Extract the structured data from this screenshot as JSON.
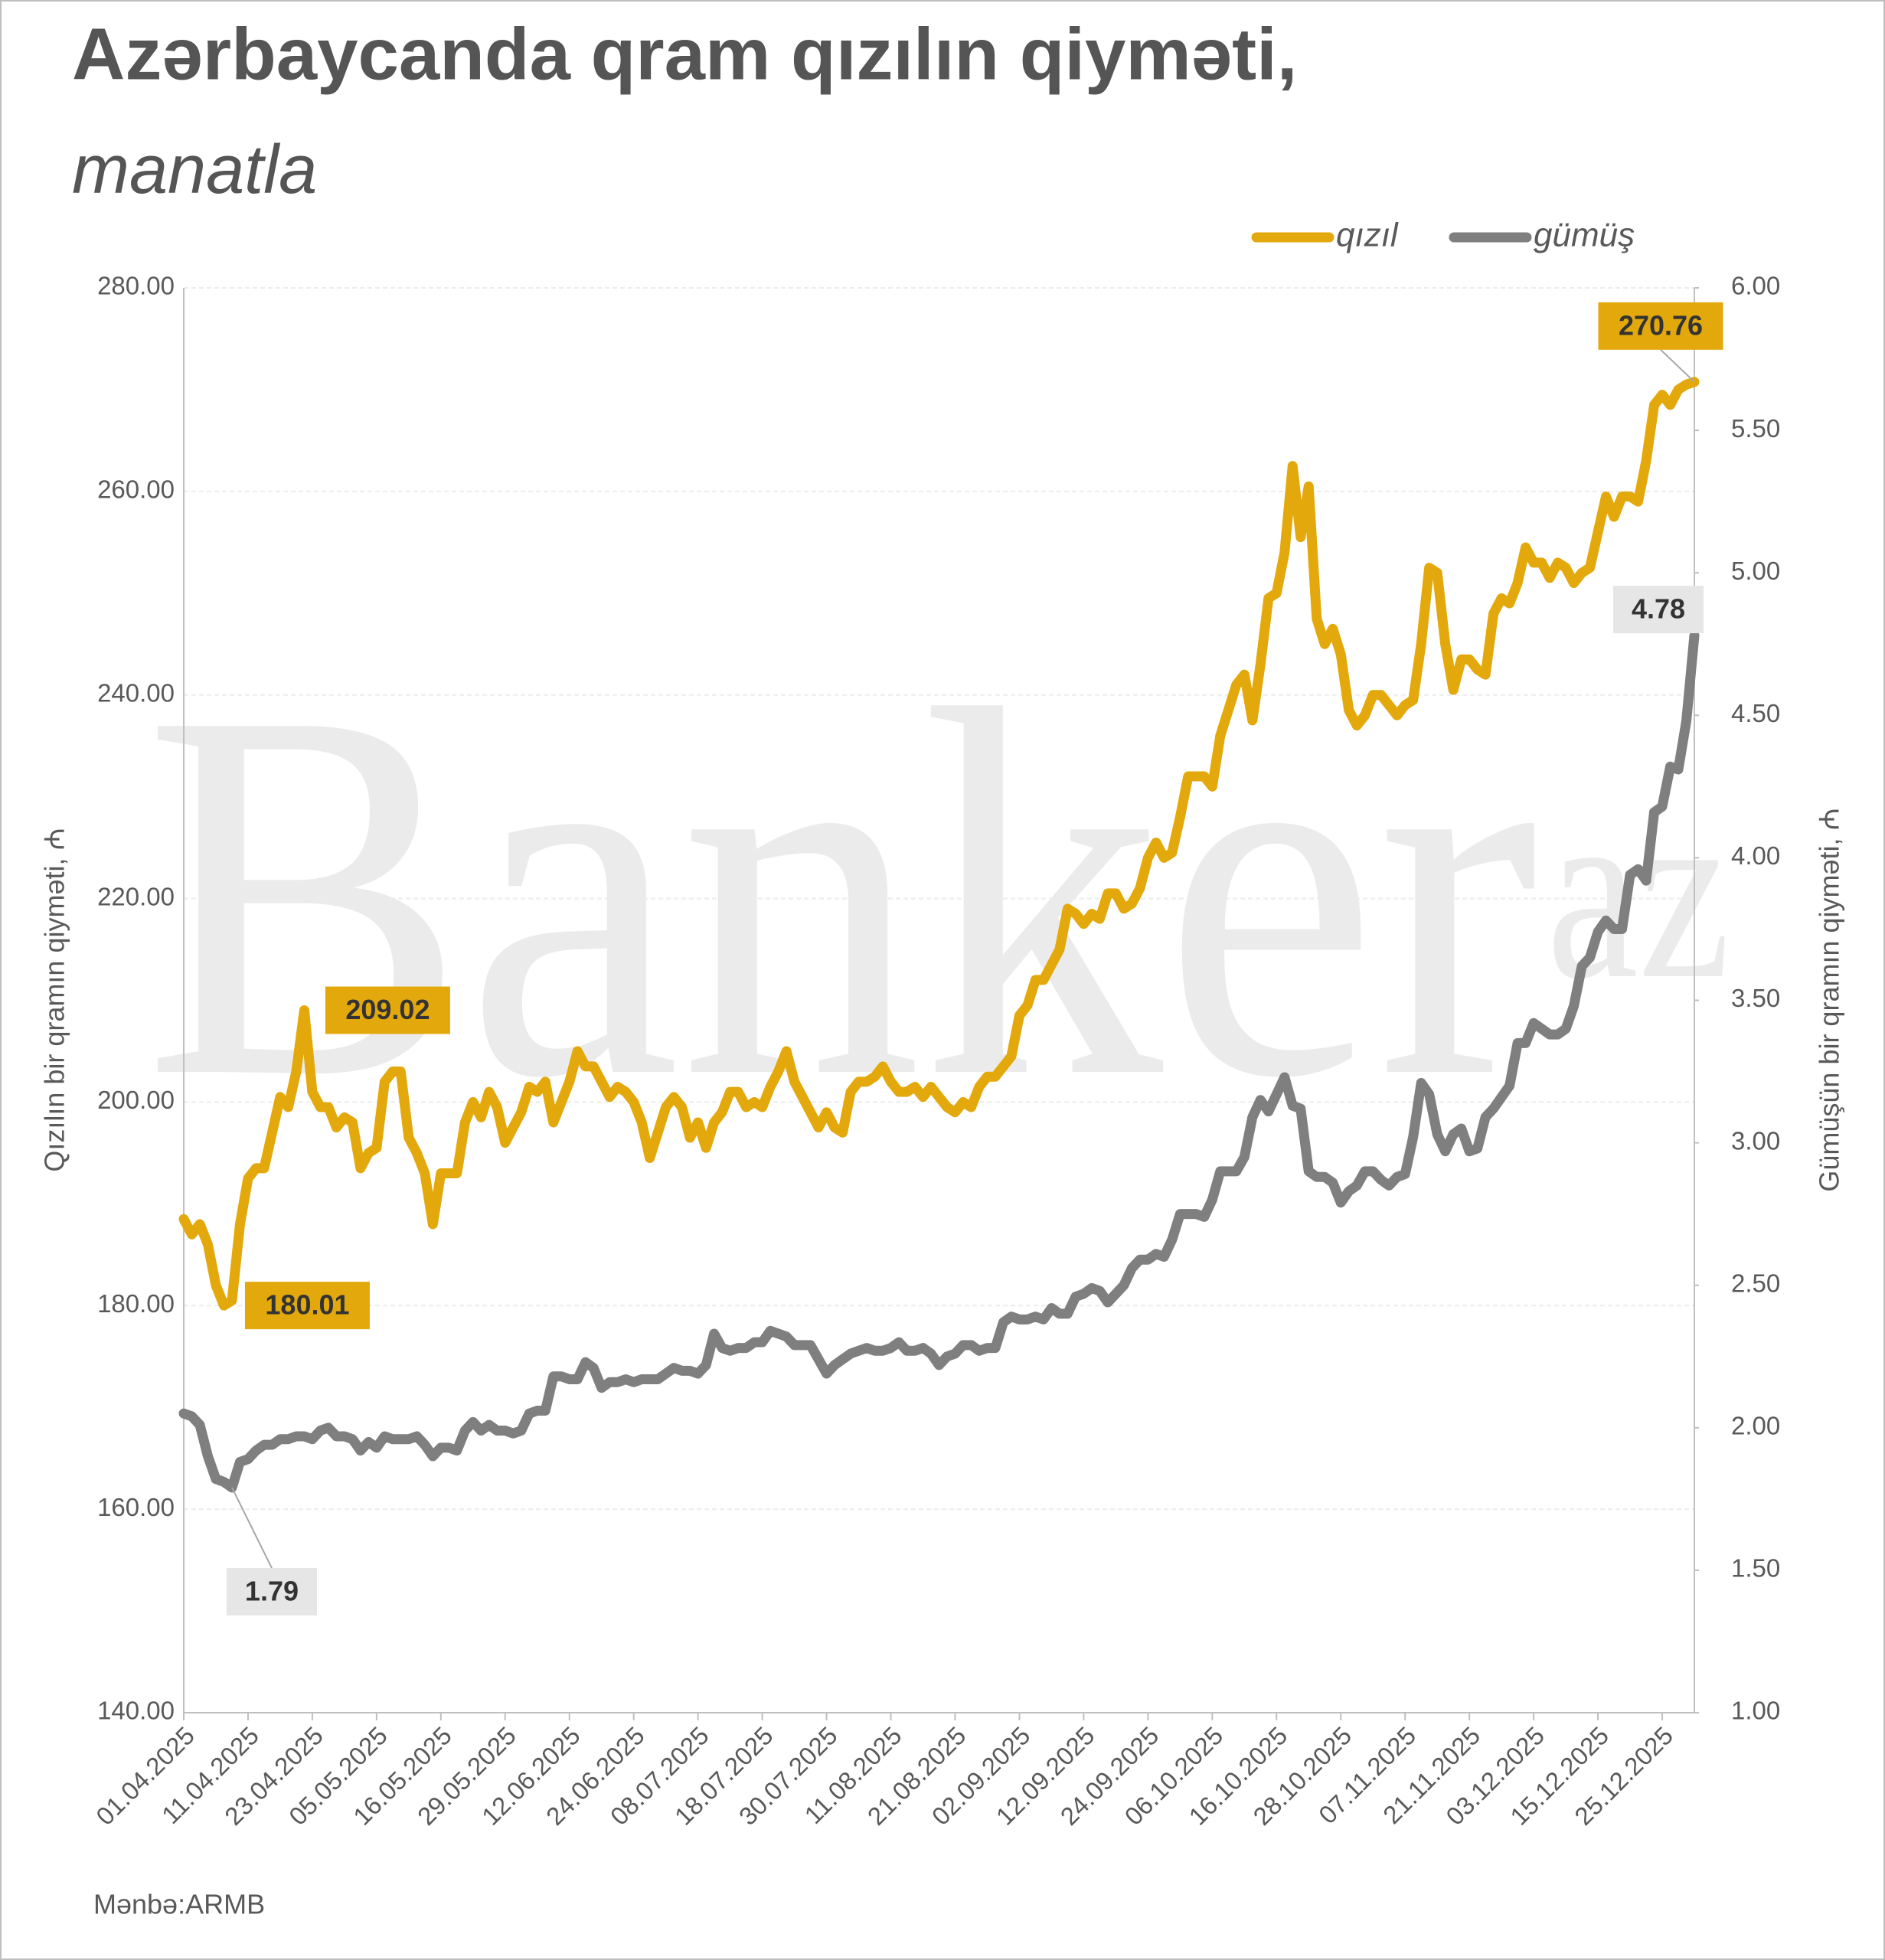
{
  "chart_data": {
    "type": "line",
    "title": "Azərbaycanda qram qızılın qiyməti,",
    "subtitle": "manatla",
    "y_label": "Qızılın bir qramın qiyməti, ₼",
    "y2_label": "Gümüşün bir qramın qiyməti, ₼",
    "source": "Mənbə:ARMB",
    "watermark": "Banker",
    "watermark_sup": "az",
    "grid": true,
    "ylim": [
      140,
      280
    ],
    "yticks": [
      {
        "value": 140,
        "label": "140.00"
      },
      {
        "value": 160,
        "label": "160.00"
      },
      {
        "value": 180,
        "label": "180.00"
      },
      {
        "value": 200,
        "label": "200.00"
      },
      {
        "value": 220,
        "label": "220.00"
      },
      {
        "value": 240,
        "label": "240.00"
      },
      {
        "value": 260,
        "label": "260.00"
      },
      {
        "value": 280,
        "label": "280.00"
      }
    ],
    "y2lim": [
      1,
      6
    ],
    "y2ticks": [
      {
        "value": 1,
        "label": "1.00"
      },
      {
        "value": 1.5,
        "label": "1.50"
      },
      {
        "value": 2,
        "label": "2.00"
      },
      {
        "value": 2.5,
        "label": "2.50"
      },
      {
        "value": 3,
        "label": "3.00"
      },
      {
        "value": 3.5,
        "label": "3.50"
      },
      {
        "value": 4,
        "label": "4.00"
      },
      {
        "value": 4.5,
        "label": "4.50"
      },
      {
        "value": 5,
        "label": "5.00"
      },
      {
        "value": 5.5,
        "label": "5.50"
      },
      {
        "value": 6,
        "label": "6.00"
      }
    ],
    "categories": [
      "01.04.2025",
      null,
      null,
      null,
      null,
      null,
      null,
      null,
      "11.04.2025",
      null,
      null,
      null,
      null,
      null,
      null,
      null,
      "23.04.2025",
      null,
      null,
      null,
      null,
      null,
      null,
      null,
      "05.05.2025",
      null,
      null,
      null,
      null,
      null,
      null,
      null,
      "16.05.2025",
      null,
      null,
      null,
      null,
      null,
      null,
      null,
      "29.05.2025",
      null,
      null,
      null,
      null,
      null,
      null,
      null,
      "12.06.2025",
      null,
      null,
      null,
      null,
      null,
      null,
      null,
      "24.06.2025",
      null,
      null,
      null,
      null,
      null,
      null,
      null,
      "08.07.2025",
      null,
      null,
      null,
      null,
      null,
      null,
      null,
      "18.07.2025",
      null,
      null,
      null,
      null,
      null,
      null,
      null,
      "30.07.2025",
      null,
      null,
      null,
      null,
      null,
      null,
      null,
      "11.08.2025",
      null,
      null,
      null,
      null,
      null,
      null,
      null,
      "21.08.2025",
      null,
      null,
      null,
      null,
      null,
      null,
      null,
      "02.09.2025",
      null,
      null,
      null,
      null,
      null,
      null,
      null,
      "12.09.2025",
      null,
      null,
      null,
      null,
      null,
      null,
      null,
      "24.09.2025",
      null,
      null,
      null,
      null,
      null,
      null,
      null,
      "06.10.2025",
      null,
      null,
      null,
      null,
      null,
      null,
      null,
      "16.10.2025",
      null,
      null,
      null,
      null,
      null,
      null,
      null,
      "28.10.2025",
      null,
      null,
      null,
      null,
      null,
      null,
      null,
      "07.11.2025",
      null,
      null,
      null,
      null,
      null,
      null,
      null,
      "21.11.2025",
      null,
      null,
      null,
      null,
      null,
      null,
      null,
      "03.12.2025",
      null,
      null,
      null,
      null,
      null,
      null,
      null,
      "15.12.2025",
      null,
      null,
      null,
      null,
      null,
      null,
      null,
      "25.12.2025",
      null,
      null,
      null,
      null
    ],
    "series": [
      {
        "name": "qızıl",
        "color": "#e3a90c",
        "labeled": [
          5,
          15,
          188
        ],
        "values": [
          188.5,
          187,
          188,
          186,
          182,
          180.01,
          180.5,
          188,
          192.5,
          193.5,
          193.5,
          197,
          200.5,
          199.5,
          203,
          209.02,
          201,
          199.5,
          199.5,
          197.5,
          198.5,
          198,
          193.5,
          195,
          195.5,
          202,
          203,
          203,
          196.5,
          195,
          193,
          188,
          193,
          193,
          193,
          198,
          200,
          198.5,
          201,
          199.5,
          196,
          197.5,
          199,
          201.5,
          201,
          202,
          198,
          200,
          202,
          205,
          203.5,
          203.5,
          202,
          200.5,
          201.5,
          201,
          200,
          198,
          194.5,
          197,
          199.5,
          200.5,
          199.5,
          196.5,
          198,
          195.5,
          198,
          199,
          201,
          201,
          199.5,
          200,
          199.5,
          201.5,
          203,
          205,
          202,
          200.5,
          199,
          197.5,
          199,
          197.5,
          197,
          201,
          202,
          202,
          202.5,
          203.5,
          202,
          201,
          201,
          201.5,
          200.5,
          201.5,
          200.5,
          199.5,
          199,
          200,
          199.5,
          201.5,
          202.5,
          202.5,
          203.5,
          204.5,
          208.5,
          209.5,
          212,
          212,
          213.5,
          215,
          219,
          218.5,
          217.5,
          218.5,
          218,
          220.5,
          220.5,
          219,
          219.5,
          221,
          224,
          225.5,
          224,
          224.5,
          228,
          232,
          232,
          232,
          231,
          236,
          238.5,
          241,
          242,
          237.5,
          243,
          249.5,
          250,
          254,
          262.5,
          255.5,
          260.5,
          247.5,
          245,
          246.5,
          244,
          238.5,
          237,
          238,
          240,
          240,
          239,
          238,
          239,
          239.5,
          245,
          252.5,
          252,
          245,
          240.5,
          243.5,
          243.5,
          242.5,
          242,
          248,
          249.5,
          249,
          251,
          254.5,
          253,
          253,
          251.5,
          253,
          252.5,
          251,
          252,
          252.5,
          256,
          259.5,
          257.5,
          259.5,
          259.5,
          259,
          263,
          268.5,
          269.5,
          268.5,
          270,
          270.5,
          270.76
        ]
      },
      {
        "name": "gümüş",
        "color": "#7f7f7f",
        "axis": "y2",
        "labeled": [
          6,
          188
        ],
        "values": [
          2.05,
          2.04,
          2.01,
          1.9,
          1.82,
          1.81,
          1.79,
          1.88,
          1.89,
          1.92,
          1.94,
          1.94,
          1.96,
          1.96,
          1.97,
          1.97,
          1.96,
          1.99,
          2.0,
          1.97,
          1.97,
          1.96,
          1.92,
          1.95,
          1.93,
          1.97,
          1.96,
          1.96,
          1.96,
          1.97,
          1.94,
          1.9,
          1.93,
          1.93,
          1.92,
          1.99,
          2.02,
          1.99,
          2.01,
          1.99,
          1.99,
          1.98,
          1.99,
          2.05,
          2.06,
          2.06,
          2.18,
          2.18,
          2.17,
          2.17,
          2.23,
          2.21,
          2.14,
          2.16,
          2.16,
          2.17,
          2.16,
          2.17,
          2.17,
          2.17,
          2.19,
          2.21,
          2.2,
          2.2,
          2.19,
          2.22,
          2.33,
          2.28,
          2.27,
          2.28,
          2.28,
          2.3,
          2.3,
          2.34,
          2.33,
          2.32,
          2.29,
          2.29,
          2.29,
          2.24,
          2.19,
          2.22,
          2.24,
          2.26,
          2.27,
          2.28,
          2.27,
          2.27,
          2.28,
          2.3,
          2.27,
          2.27,
          2.28,
          2.26,
          2.22,
          2.25,
          2.26,
          2.29,
          2.29,
          2.27,
          2.28,
          2.28,
          2.37,
          2.39,
          2.38,
          2.38,
          2.39,
          2.38,
          2.42,
          2.4,
          2.4,
          2.46,
          2.47,
          2.49,
          2.48,
          2.44,
          2.47,
          2.5,
          2.56,
          2.59,
          2.59,
          2.61,
          2.6,
          2.66,
          2.75,
          2.75,
          2.75,
          2.74,
          2.8,
          2.9,
          2.9,
          2.9,
          2.95,
          3.09,
          3.15,
          3.11,
          3.17,
          3.23,
          3.13,
          3.12,
          2.9,
          2.88,
          2.88,
          2.86,
          2.79,
          2.83,
          2.85,
          2.9,
          2.9,
          2.87,
          2.85,
          2.88,
          2.89,
          3.02,
          3.21,
          3.17,
          3.03,
          2.97,
          3.03,
          3.05,
          2.97,
          2.98,
          3.09,
          3.12,
          3.16,
          3.2,
          3.35,
          3.35,
          3.42,
          3.4,
          3.38,
          3.38,
          3.4,
          3.48,
          3.62,
          3.65,
          3.74,
          3.78,
          3.75,
          3.75,
          3.94,
          3.96,
          3.92,
          4.16,
          4.18,
          4.32,
          4.31,
          4.48,
          4.78
        ]
      }
    ]
  }
}
